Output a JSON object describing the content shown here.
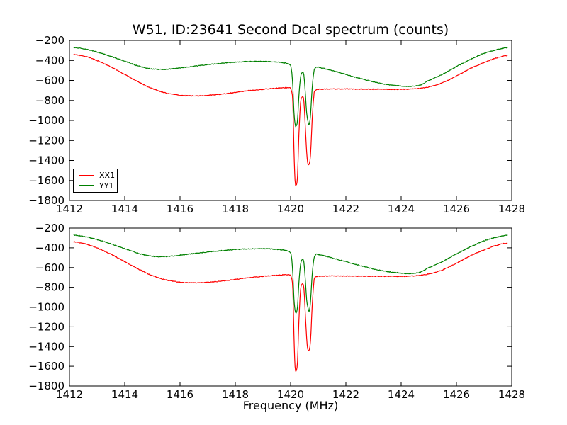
{
  "title": "W51, ID:23641 Second Dcal spectrum (counts)",
  "xlabel": "Frequency (MHz)",
  "colors": {
    "background": "#ffffff",
    "axis": "#000000",
    "xx1": "#ff0000",
    "yy1": "#008000"
  },
  "legend": {
    "position": "lower left of top subplot",
    "entries": [
      {
        "label": "XX1",
        "color": "#ff0000"
      },
      {
        "label": "YY1",
        "color": "#008000"
      }
    ]
  },
  "chart_data": [
    {
      "type": "line",
      "subplot": "top",
      "xlim": [
        1412,
        1428
      ],
      "ylim": [
        -1800,
        -200
      ],
      "xticks": [
        1412,
        1414,
        1416,
        1418,
        1420,
        1422,
        1424,
        1426,
        1428
      ],
      "xtick_labels": [
        "1412",
        "1414",
        "1416",
        "1418",
        "1420",
        "1422",
        "1424",
        "1426",
        "1428"
      ],
      "yticks": [
        -200,
        -400,
        -600,
        -800,
        -1000,
        -1200,
        -1400,
        -1600,
        -1800
      ],
      "ytick_labels": [
        "−200",
        "−400",
        "−600",
        "−800",
        "−1000",
        "−1200",
        "−1400",
        "−1600",
        "−1800"
      ],
      "grid": false,
      "legend_visible": true,
      "series": [
        {
          "name": "XX1",
          "color": "#ff0000",
          "points": [
            [
              1412.15,
              -338
            ],
            [
              1412.6,
              -362
            ],
            [
              1413,
              -402
            ],
            [
              1413.5,
              -465
            ],
            [
              1414,
              -540
            ],
            [
              1414.5,
              -616
            ],
            [
              1415,
              -682
            ],
            [
              1415.5,
              -726
            ],
            [
              1416,
              -748
            ],
            [
              1416.5,
              -754
            ],
            [
              1417,
              -749
            ],
            [
              1417.5,
              -737
            ],
            [
              1418,
              -720
            ],
            [
              1418.5,
              -702
            ],
            [
              1419,
              -689
            ],
            [
              1419.5,
              -678
            ],
            [
              1419.9,
              -674
            ],
            [
              1420.02,
              -692
            ],
            [
              1420.08,
              -820
            ],
            [
              1420.12,
              -1280
            ],
            [
              1420.16,
              -1600
            ],
            [
              1420.2,
              -1648
            ],
            [
              1420.25,
              -1555
            ],
            [
              1420.3,
              -1140
            ],
            [
              1420.36,
              -828
            ],
            [
              1420.42,
              -768
            ],
            [
              1420.48,
              -805
            ],
            [
              1420.54,
              -1110
            ],
            [
              1420.6,
              -1385
            ],
            [
              1420.66,
              -1442
            ],
            [
              1420.72,
              -1345
            ],
            [
              1420.78,
              -995
            ],
            [
              1420.84,
              -758
            ],
            [
              1420.9,
              -697
            ],
            [
              1421.2,
              -687
            ],
            [
              1421.8,
              -685
            ],
            [
              1422.5,
              -687
            ],
            [
              1423.2,
              -688
            ],
            [
              1424,
              -689
            ],
            [
              1424.5,
              -684
            ],
            [
              1425,
              -665
            ],
            [
              1425.5,
              -623
            ],
            [
              1426,
              -556
            ],
            [
              1426.5,
              -481
            ],
            [
              1427,
              -421
            ],
            [
              1427.4,
              -379
            ],
            [
              1427.7,
              -357
            ],
            [
              1427.85,
              -352
            ]
          ]
        },
        {
          "name": "YY1",
          "color": "#008000",
          "points": [
            [
              1412.15,
              -270
            ],
            [
              1412.6,
              -289
            ],
            [
              1413,
              -316
            ],
            [
              1413.5,
              -360
            ],
            [
              1414,
              -408
            ],
            [
              1414.5,
              -456
            ],
            [
              1414.9,
              -482
            ],
            [
              1415.3,
              -490
            ],
            [
              1415.7,
              -484
            ],
            [
              1416.2,
              -468
            ],
            [
              1416.7,
              -452
            ],
            [
              1417.2,
              -437
            ],
            [
              1417.7,
              -424
            ],
            [
              1418.2,
              -414
            ],
            [
              1418.7,
              -410
            ],
            [
              1419.2,
              -411
            ],
            [
              1419.6,
              -418
            ],
            [
              1419.9,
              -433
            ],
            [
              1420.02,
              -472
            ],
            [
              1420.08,
              -660
            ],
            [
              1420.12,
              -910
            ],
            [
              1420.16,
              -1032
            ],
            [
              1420.2,
              -1058
            ],
            [
              1420.25,
              -995
            ],
            [
              1420.3,
              -755
            ],
            [
              1420.36,
              -568
            ],
            [
              1420.42,
              -522
            ],
            [
              1420.48,
              -546
            ],
            [
              1420.54,
              -755
            ],
            [
              1420.58,
              -925
            ],
            [
              1420.63,
              -1010
            ],
            [
              1420.67,
              -1042
            ],
            [
              1420.72,
              -948
            ],
            [
              1420.78,
              -675
            ],
            [
              1420.84,
              -518
            ],
            [
              1420.9,
              -472
            ],
            [
              1421,
              -468
            ],
            [
              1421.5,
              -501
            ],
            [
              1422,
              -541
            ],
            [
              1422.5,
              -579
            ],
            [
              1423,
              -614
            ],
            [
              1423.5,
              -641
            ],
            [
              1424,
              -656
            ],
            [
              1424.3,
              -660
            ],
            [
              1424.7,
              -646
            ],
            [
              1425,
              -601
            ],
            [
              1425.5,
              -538
            ],
            [
              1426,
              -462
            ],
            [
              1426.5,
              -391
            ],
            [
              1427,
              -329
            ],
            [
              1427.4,
              -297
            ],
            [
              1427.7,
              -278
            ],
            [
              1427.85,
              -272
            ]
          ]
        }
      ]
    },
    {
      "type": "line",
      "subplot": "bottom",
      "xlabel": "Frequency (MHz)",
      "xlim": [
        1412,
        1428
      ],
      "ylim": [
        -1800,
        -200
      ],
      "xticks": [
        1412,
        1414,
        1416,
        1418,
        1420,
        1422,
        1424,
        1426,
        1428
      ],
      "xtick_labels": [
        "1412",
        "1414",
        "1416",
        "1418",
        "1420",
        "1422",
        "1424",
        "1426",
        "1428"
      ],
      "yticks": [
        -200,
        -400,
        -600,
        -800,
        -1000,
        -1200,
        -1400,
        -1600,
        -1800
      ],
      "ytick_labels": [
        "−200",
        "−400",
        "−600",
        "−800",
        "−1000",
        "−1200",
        "−1400",
        "−1600",
        "−1800"
      ],
      "grid": false,
      "legend_visible": false,
      "series": [
        {
          "name": "XX1",
          "color": "#ff0000",
          "points": [
            [
              1412.15,
              -338
            ],
            [
              1412.6,
              -362
            ],
            [
              1413,
              -402
            ],
            [
              1413.5,
              -465
            ],
            [
              1414,
              -540
            ],
            [
              1414.5,
              -616
            ],
            [
              1415,
              -682
            ],
            [
              1415.5,
              -726
            ],
            [
              1416,
              -748
            ],
            [
              1416.5,
              -754
            ],
            [
              1417,
              -749
            ],
            [
              1417.5,
              -737
            ],
            [
              1418,
              -720
            ],
            [
              1418.5,
              -702
            ],
            [
              1419,
              -689
            ],
            [
              1419.5,
              -678
            ],
            [
              1419.9,
              -674
            ],
            [
              1420.02,
              -692
            ],
            [
              1420.08,
              -820
            ],
            [
              1420.12,
              -1280
            ],
            [
              1420.16,
              -1600
            ],
            [
              1420.2,
              -1648
            ],
            [
              1420.25,
              -1555
            ],
            [
              1420.3,
              -1140
            ],
            [
              1420.36,
              -828
            ],
            [
              1420.42,
              -768
            ],
            [
              1420.48,
              -805
            ],
            [
              1420.54,
              -1110
            ],
            [
              1420.6,
              -1385
            ],
            [
              1420.66,
              -1442
            ],
            [
              1420.72,
              -1345
            ],
            [
              1420.78,
              -995
            ],
            [
              1420.84,
              -758
            ],
            [
              1420.9,
              -697
            ],
            [
              1421.2,
              -687
            ],
            [
              1421.8,
              -685
            ],
            [
              1422.5,
              -687
            ],
            [
              1423.2,
              -688
            ],
            [
              1424,
              -689
            ],
            [
              1424.5,
              -684
            ],
            [
              1425,
              -665
            ],
            [
              1425.5,
              -623
            ],
            [
              1426,
              -556
            ],
            [
              1426.5,
              -481
            ],
            [
              1427,
              -421
            ],
            [
              1427.4,
              -379
            ],
            [
              1427.7,
              -357
            ],
            [
              1427.85,
              -352
            ]
          ]
        },
        {
          "name": "YY1",
          "color": "#008000",
          "points": [
            [
              1412.15,
              -270
            ],
            [
              1412.6,
              -289
            ],
            [
              1413,
              -316
            ],
            [
              1413.5,
              -360
            ],
            [
              1414,
              -408
            ],
            [
              1414.5,
              -456
            ],
            [
              1414.9,
              -482
            ],
            [
              1415.3,
              -490
            ],
            [
              1415.7,
              -484
            ],
            [
              1416.2,
              -468
            ],
            [
              1416.7,
              -452
            ],
            [
              1417.2,
              -437
            ],
            [
              1417.7,
              -424
            ],
            [
              1418.2,
              -414
            ],
            [
              1418.7,
              -410
            ],
            [
              1419.2,
              -411
            ],
            [
              1419.6,
              -418
            ],
            [
              1419.9,
              -433
            ],
            [
              1420.02,
              -472
            ],
            [
              1420.08,
              -660
            ],
            [
              1420.12,
              -910
            ],
            [
              1420.16,
              -1032
            ],
            [
              1420.2,
              -1058
            ],
            [
              1420.25,
              -995
            ],
            [
              1420.3,
              -755
            ],
            [
              1420.36,
              -568
            ],
            [
              1420.42,
              -522
            ],
            [
              1420.48,
              -546
            ],
            [
              1420.54,
              -755
            ],
            [
              1420.58,
              -925
            ],
            [
              1420.63,
              -1010
            ],
            [
              1420.67,
              -1042
            ],
            [
              1420.72,
              -948
            ],
            [
              1420.78,
              -675
            ],
            [
              1420.84,
              -518
            ],
            [
              1420.9,
              -472
            ],
            [
              1421,
              -468
            ],
            [
              1421.5,
              -501
            ],
            [
              1422,
              -541
            ],
            [
              1422.5,
              -579
            ],
            [
              1423,
              -614
            ],
            [
              1423.5,
              -641
            ],
            [
              1424,
              -656
            ],
            [
              1424.3,
              -660
            ],
            [
              1424.7,
              -646
            ],
            [
              1425,
              -601
            ],
            [
              1425.5,
              -538
            ],
            [
              1426,
              -462
            ],
            [
              1426.5,
              -391
            ],
            [
              1427,
              -329
            ],
            [
              1427.4,
              -297
            ],
            [
              1427.7,
              -278
            ],
            [
              1427.85,
              -272
            ]
          ]
        }
      ]
    }
  ]
}
